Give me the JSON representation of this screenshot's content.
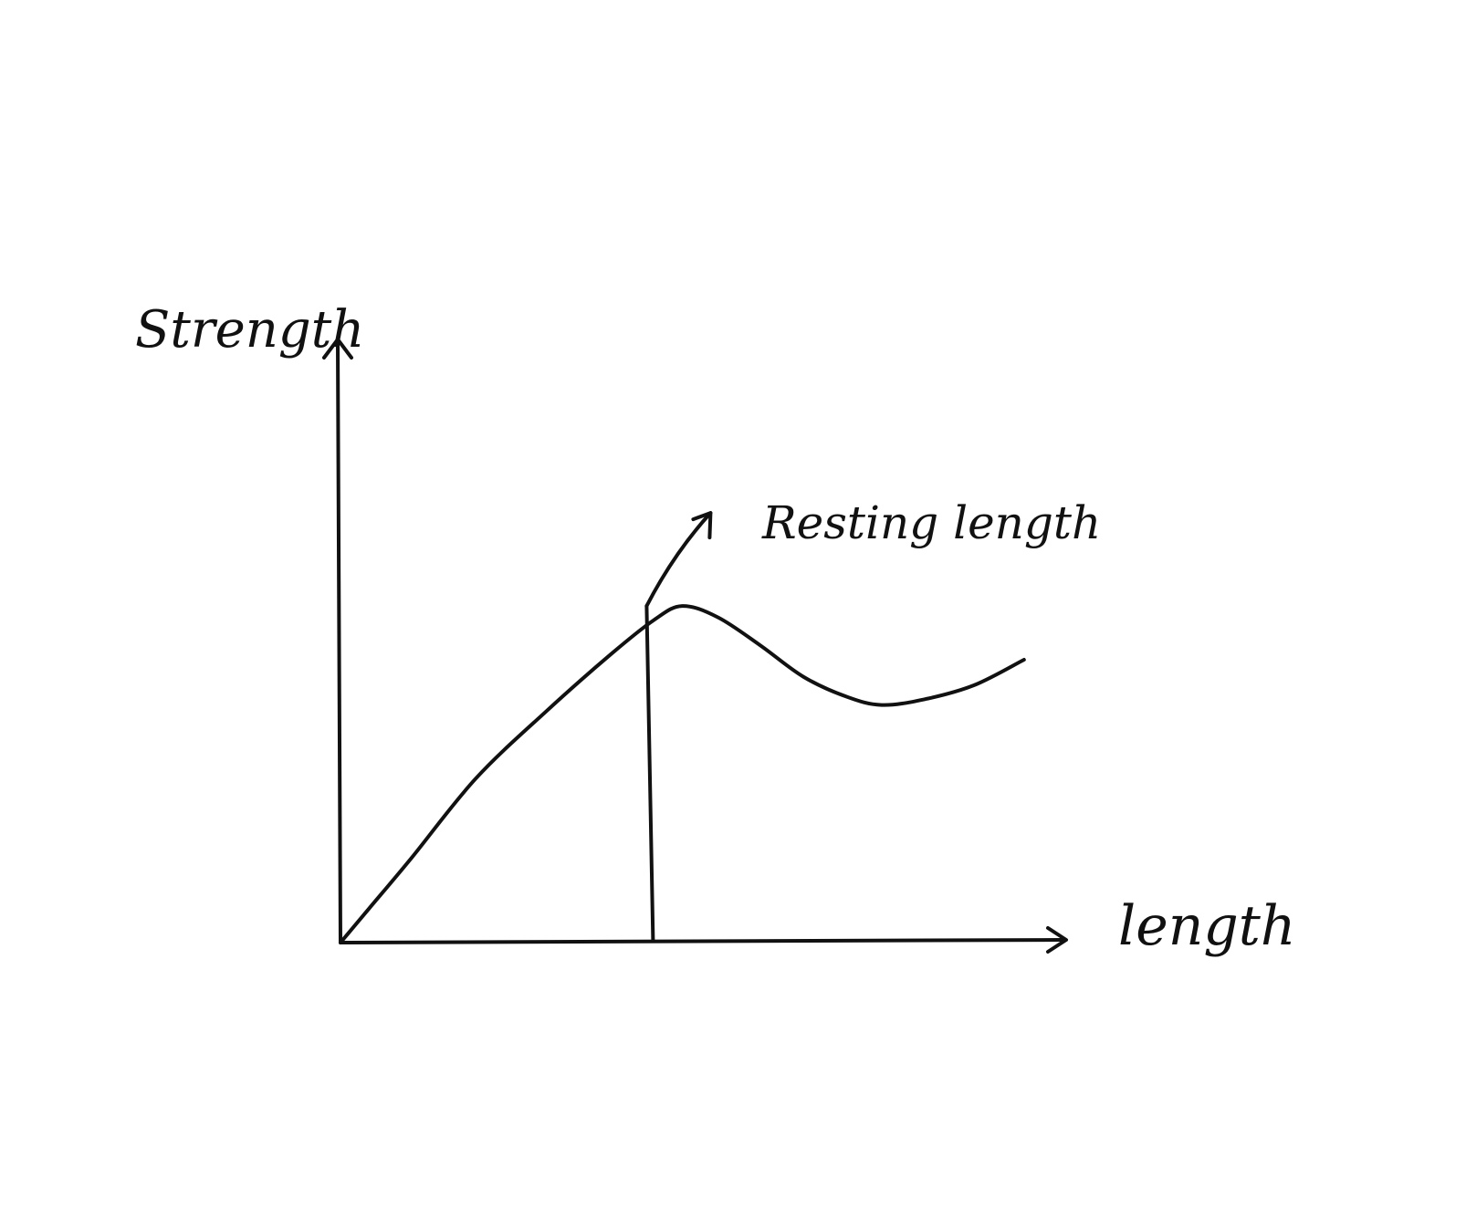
{
  "chart_data": {
    "type": "line",
    "title": "",
    "xlabel": "length",
    "ylabel": "Strength",
    "grid": false,
    "legend": "none",
    "x_ticks": "none",
    "y_ticks": "none",
    "xlim": [
      0,
      10
    ],
    "ylim": [
      0,
      8
    ],
    "series": [
      {
        "points": [
          [
            0.0,
            0.0
          ],
          [
            0.4,
            0.6
          ],
          [
            1.0,
            1.5
          ],
          [
            1.9,
            2.9
          ],
          [
            2.9,
            4.1
          ],
          [
            3.8,
            5.1
          ],
          [
            4.4,
            5.7
          ],
          [
            4.8,
            5.95
          ],
          [
            5.3,
            5.75
          ],
          [
            5.9,
            5.25
          ],
          [
            6.5,
            4.7
          ],
          [
            7.1,
            4.35
          ],
          [
            7.6,
            4.2
          ],
          [
            8.2,
            4.3
          ],
          [
            8.9,
            4.55
          ],
          [
            9.6,
            5.0
          ]
        ]
      }
    ],
    "annotations": [
      {
        "text": "Resting length",
        "x": 4.3,
        "y": 5.95,
        "marker": "vertical line from the curve's peak to the x-axis",
        "arrow": "from peak pointing up-right toward the label"
      }
    ]
  }
}
